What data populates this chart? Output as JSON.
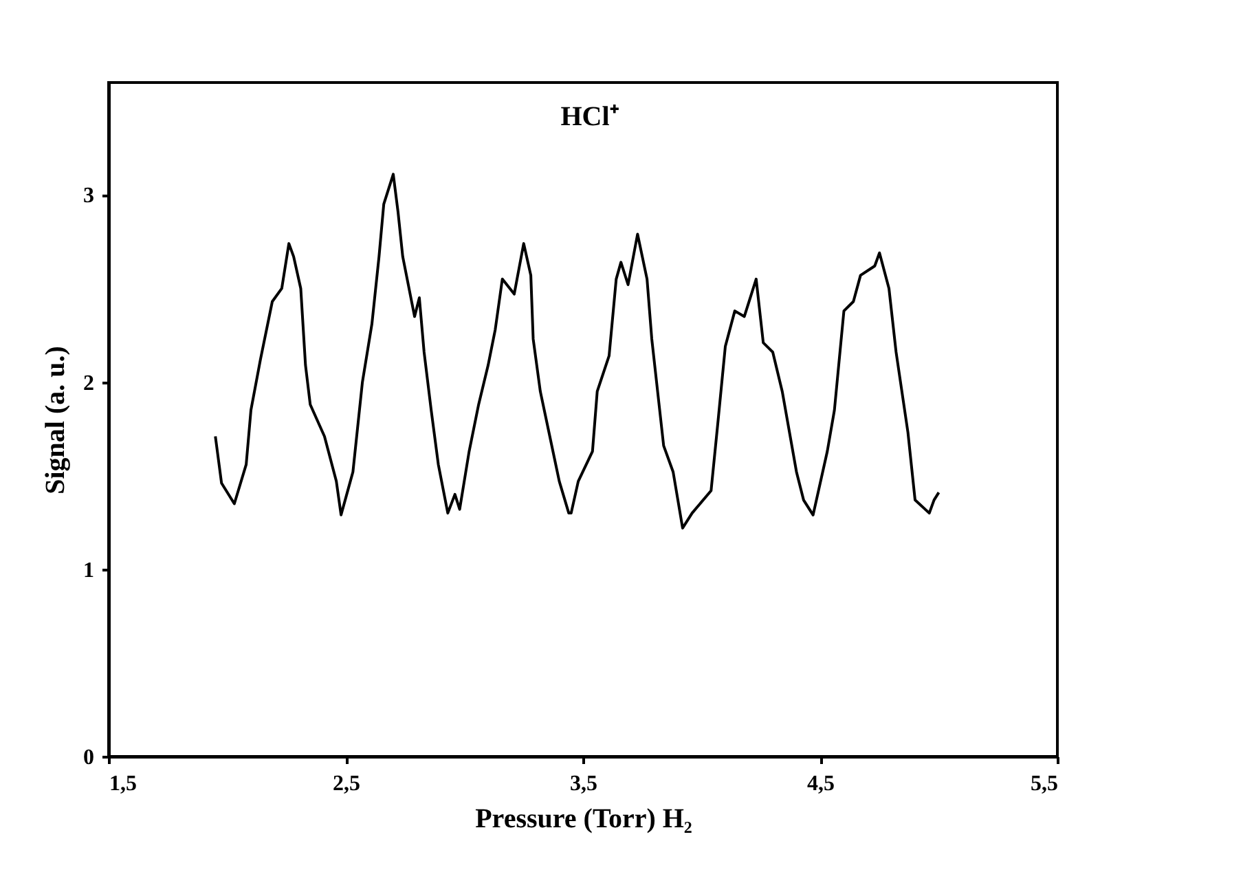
{
  "chart_data": {
    "type": "line",
    "xlabel": "Pressure (Torr)   H₂",
    "ylabel": "Signal (a. u.)",
    "annotations": [
      "HCl⁺"
    ],
    "xlim": [
      1.5,
      5.5
    ],
    "xticks": [
      {
        "value": 1.5,
        "label": "1,5"
      },
      {
        "value": 2.5,
        "label": "2,5"
      },
      {
        "value": 3.5,
        "label": "3,5"
      },
      {
        "value": 4.5,
        "label": "4,5"
      },
      {
        "value": 5.5,
        "label": "5,5"
      }
    ],
    "ylim": [
      0,
      3.6
    ],
    "yticks": [
      0,
      1,
      2,
      3
    ],
    "grid": false,
    "marker": "none",
    "line_style": "solid",
    "series": [
      {
        "color": "#000000",
        "x": [
          1.95,
          1.976,
          2.03,
          2.08,
          2.1,
          2.14,
          2.19,
          2.23,
          2.26,
          2.28,
          2.31,
          2.33,
          2.35,
          2.41,
          2.46,
          2.48,
          2.53,
          2.57,
          2.61,
          2.64,
          2.66,
          2.7,
          2.72,
          2.74,
          2.79,
          2.81,
          2.83,
          2.86,
          2.89,
          2.93,
          2.96,
          2.98,
          3.02,
          3.06,
          3.1,
          3.13,
          3.16,
          3.21,
          3.25,
          3.28,
          3.29,
          3.32,
          3.36,
          3.4,
          3.44,
          3.45,
          3.48,
          3.54,
          3.56,
          3.61,
          3.64,
          3.66,
          3.69,
          3.73,
          3.77,
          3.79,
          3.84,
          3.88,
          3.92,
          3.96,
          4.04,
          4.07,
          4.1,
          4.14,
          4.18,
          4.23,
          4.26,
          4.3,
          4.34,
          4.4,
          4.43,
          4.47,
          4.53,
          4.56,
          4.6,
          4.64,
          4.67,
          4.73,
          4.75,
          4.79,
          4.82,
          4.87,
          4.9,
          4.96,
          4.98,
          5.0
        ],
        "values": [
          1.71,
          1.46,
          1.35,
          1.56,
          1.85,
          2.12,
          2.43,
          2.5,
          2.74,
          2.67,
          2.5,
          2.09,
          1.88,
          1.71,
          1.47,
          1.29,
          1.52,
          2.0,
          2.31,
          2.67,
          2.95,
          3.11,
          2.91,
          2.67,
          2.35,
          2.45,
          2.16,
          1.85,
          1.56,
          1.3,
          1.4,
          1.32,
          1.63,
          1.88,
          2.09,
          2.28,
          2.55,
          2.47,
          2.74,
          2.57,
          2.23,
          1.95,
          1.71,
          1.47,
          1.3,
          1.3,
          1.47,
          1.63,
          1.95,
          2.14,
          2.55,
          2.64,
          2.52,
          2.79,
          2.55,
          2.23,
          1.66,
          1.52,
          1.22,
          1.3,
          1.42,
          1.8,
          2.19,
          2.38,
          2.35,
          2.55,
          2.21,
          2.16,
          1.95,
          1.52,
          1.37,
          1.29,
          1.63,
          1.85,
          2.38,
          2.43,
          2.57,
          2.62,
          2.69,
          2.5,
          2.16,
          1.73,
          1.37,
          1.3,
          1.37,
          1.41
        ]
      }
    ]
  }
}
